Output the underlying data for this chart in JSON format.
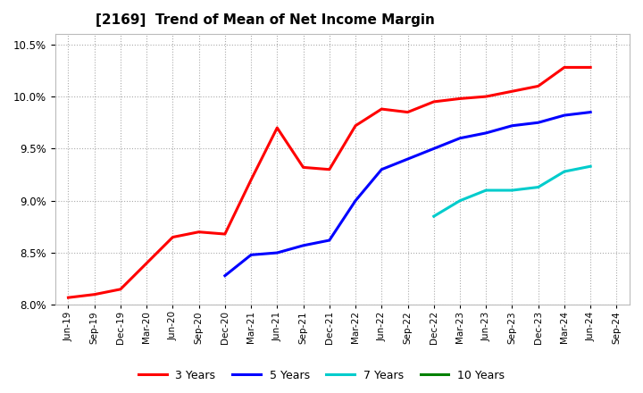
{
  "title": "[2169]  Trend of Mean of Net Income Margin",
  "ylim": [
    0.08,
    0.106
  ],
  "yticks": [
    0.08,
    0.085,
    0.09,
    0.095,
    0.1,
    0.105
  ],
  "background_color": "#ffffff",
  "grid_color": "#aaaaaa",
  "xtick_labels": [
    "Jun-19",
    "Sep-19",
    "Dec-19",
    "Mar-20",
    "Jun-20",
    "Sep-20",
    "Dec-20",
    "Mar-21",
    "Jun-21",
    "Sep-21",
    "Dec-21",
    "Mar-22",
    "Jun-22",
    "Sep-22",
    "Dec-22",
    "Mar-23",
    "Jun-23",
    "Sep-23",
    "Dec-23",
    "Mar-24",
    "Jun-24",
    "Sep-24"
  ],
  "series": [
    {
      "name": "3 Years",
      "color": "#ff0000",
      "x_indices": [
        0,
        1,
        2,
        3,
        4,
        5,
        6,
        7,
        8,
        9,
        10,
        11,
        12,
        13,
        14,
        15,
        16,
        17,
        18,
        19,
        20
      ],
      "values": [
        0.0807,
        0.081,
        0.0815,
        0.084,
        0.0865,
        0.087,
        0.0868,
        0.092,
        0.097,
        0.0932,
        0.093,
        0.0972,
        0.0988,
        0.0985,
        0.0995,
        0.0998,
        0.1,
        0.1005,
        0.101,
        0.1028,
        0.1028
      ]
    },
    {
      "name": "5 Years",
      "color": "#0000ff",
      "x_indices": [
        6,
        7,
        8,
        9,
        10,
        11,
        12,
        13,
        14,
        15,
        16,
        17,
        18,
        19,
        20
      ],
      "values": [
        0.0828,
        0.0848,
        0.085,
        0.0857,
        0.0862,
        0.09,
        0.093,
        0.094,
        0.095,
        0.096,
        0.0965,
        0.0972,
        0.0975,
        0.0982,
        0.0985
      ]
    },
    {
      "name": "7 Years",
      "color": "#00cccc",
      "x_indices": [
        14,
        15,
        16,
        17,
        18,
        19,
        20
      ],
      "values": [
        0.0885,
        0.09,
        0.091,
        0.091,
        0.0913,
        0.0928,
        0.0933
      ]
    },
    {
      "name": "10 Years",
      "color": "#008000",
      "x_indices": [],
      "values": []
    }
  ]
}
